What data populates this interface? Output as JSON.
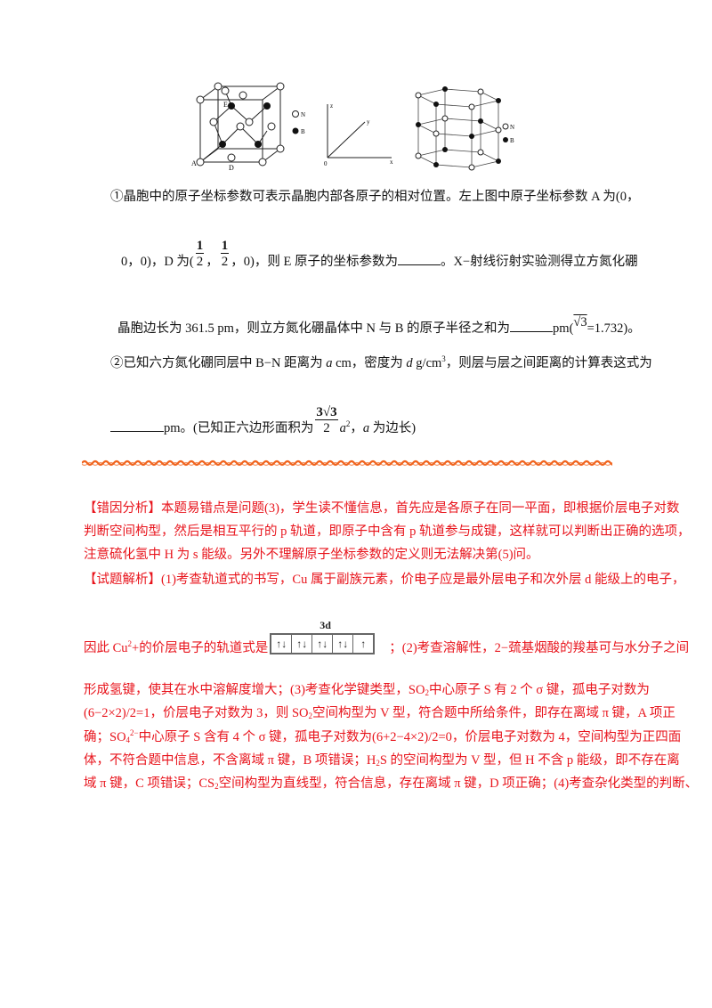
{
  "figures": {
    "cubic_legend": [
      "N",
      "B"
    ],
    "cubic_labels": [
      "A",
      "D",
      "E"
    ],
    "axes_labels": [
      "z",
      "y",
      "x",
      "0"
    ],
    "hex_legend": [
      "N",
      "B"
    ]
  },
  "question": {
    "l1": "①晶胞中的原子坐标参数可表示晶胞内部各原子的相对位置。左上图中原子坐标参数 A 为(0，",
    "l2a": "0，0)，D 为(",
    "l2b": "，",
    "l2c": "，0)，则 E 原子的坐标参数为",
    "l2d": " 。X−射线衍射实验测得立方氮化硼",
    "frac_num": "1",
    "frac_den": "2",
    "l3a": "晶胞边长为 361.5 pm，则立方氮化硼晶体中 N 与 B 的原子半径之和为",
    "l3b": "pm(",
    "sqrt3": "√3",
    "l3c": "=1.732)。",
    "l4a": "②已知六方氮化硼同层中 B−N 距离为 ",
    "a": "a",
    "l4b": " cm，密度为 ",
    "d": "d",
    "l4c": " g/cm",
    "cube": "3",
    "l4d": "，则层与层之间距离的计算表这式为",
    "l5a": "pm。(已知正六边形面积为",
    "hex_num": "3√3",
    "hex_den": "2",
    "l5b": "，",
    "l5c": " 为边长)",
    "sq": "2"
  },
  "analysis": {
    "r1": "【错因分析】本题易错点是问题(3)，学生读不懂信息，首先应是各原子在同一平面，即根据价层电子对数",
    "r2": "判断空间构型，然后是相互平行的 p 轨道，即原子中含有 p 轨道参与成键，这样就可以判断出正确的选项，",
    "r3": "注意硫化氢中 H 为 s 能级。另外不理解原子坐标参数的定义则无法解决第(5)问。",
    "r4": "【试题解析】(1)考查轨道式的书写，Cu 属于副族元素，价电子应是最外层电子和次外层 d 能级上的电子，",
    "r5a": "因此 Cu",
    "r5sup": "2",
    "r5b": "+的价层电子的轨道式是",
    "r5c": "；(2)考查溶解性，2−巯基烟酸的羧基可与水分子之间",
    "orbital_label": "3d",
    "orbitals": [
      "↑↓",
      "↑↓",
      "↑↓",
      "↑↓",
      "↑"
    ],
    "r6a": "形成氢键，使其在水中溶解度增大；(3)考查化学键类型，SO",
    "r6b": "中心原子 S 有 2 个 σ 键，孤电子对数为",
    "r7a": "(6−2×2)/2=1，价层电子对数为 3，则 SO",
    "r7b": "空间构型为 V 型，符合题中所给条件，即存在离域 π 键，A 项正",
    "r8a": "确；SO",
    "r8sub": "4",
    "r8sup": "2−",
    "r8b": "中心原子 S 含有 4 个 σ 键，孤电子对数为(6+2−4×2)/2=0，价层电子对数为 4，空间构型为正四面",
    "r9a": "体，不符合题中信息，不含离域 π 键，B 项错误；H",
    "r9b": "S 的空间构型为 V 型，但 H 不含 p 能级，即不存在离",
    "r10a": "域 π 键，C 项错误；CS",
    "r10b": "空间构型为直线型，符合信息，存在离域 π 键，D 项正确；(4)考查杂化类型的判断、",
    "sub2": "2"
  },
  "colors": {
    "analysis_text": "#e8141c",
    "divider": "#f0641e"
  }
}
